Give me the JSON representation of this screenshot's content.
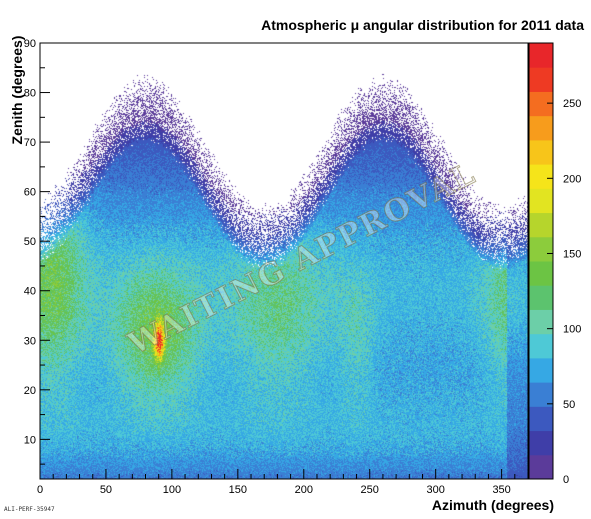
{
  "chart_data": {
    "type": "heatmap",
    "title": "Atmospheric μ angular distribution for 2011 data",
    "xlabel": "Azimuth (degrees)",
    "ylabel": "Zenith (degrees)",
    "xlim": [
      0,
      370
    ],
    "ylim": [
      2,
      90
    ],
    "x_ticks": [
      0,
      50,
      100,
      150,
      200,
      250,
      300,
      350
    ],
    "y_ticks": [
      10,
      20,
      30,
      40,
      50,
      60,
      70,
      80,
      90
    ],
    "z_ticks": [
      0,
      50,
      100,
      150,
      200,
      250
    ],
    "zlim": [
      0,
      290
    ],
    "palette": [
      "#5b3b9a",
      "#3f3ea8",
      "#3c59bf",
      "#3a7fd4",
      "#36a8e4",
      "#4ec9d6",
      "#6ccfa8",
      "#5cc36e",
      "#6cc444",
      "#8ccc3c",
      "#b6d52c",
      "#e2e421",
      "#f5e41a",
      "#f7c51a",
      "#f79c1c",
      "#f46d20",
      "#ee3a23",
      "#e8262a"
    ],
    "peak": {
      "azimuth": 90,
      "zenith": 30,
      "counts": 290
    },
    "grid": false,
    "legend": "colorbar on right",
    "watermark": "WAITING APPROVAL",
    "footer_code": "ALI-PERF-35947"
  }
}
